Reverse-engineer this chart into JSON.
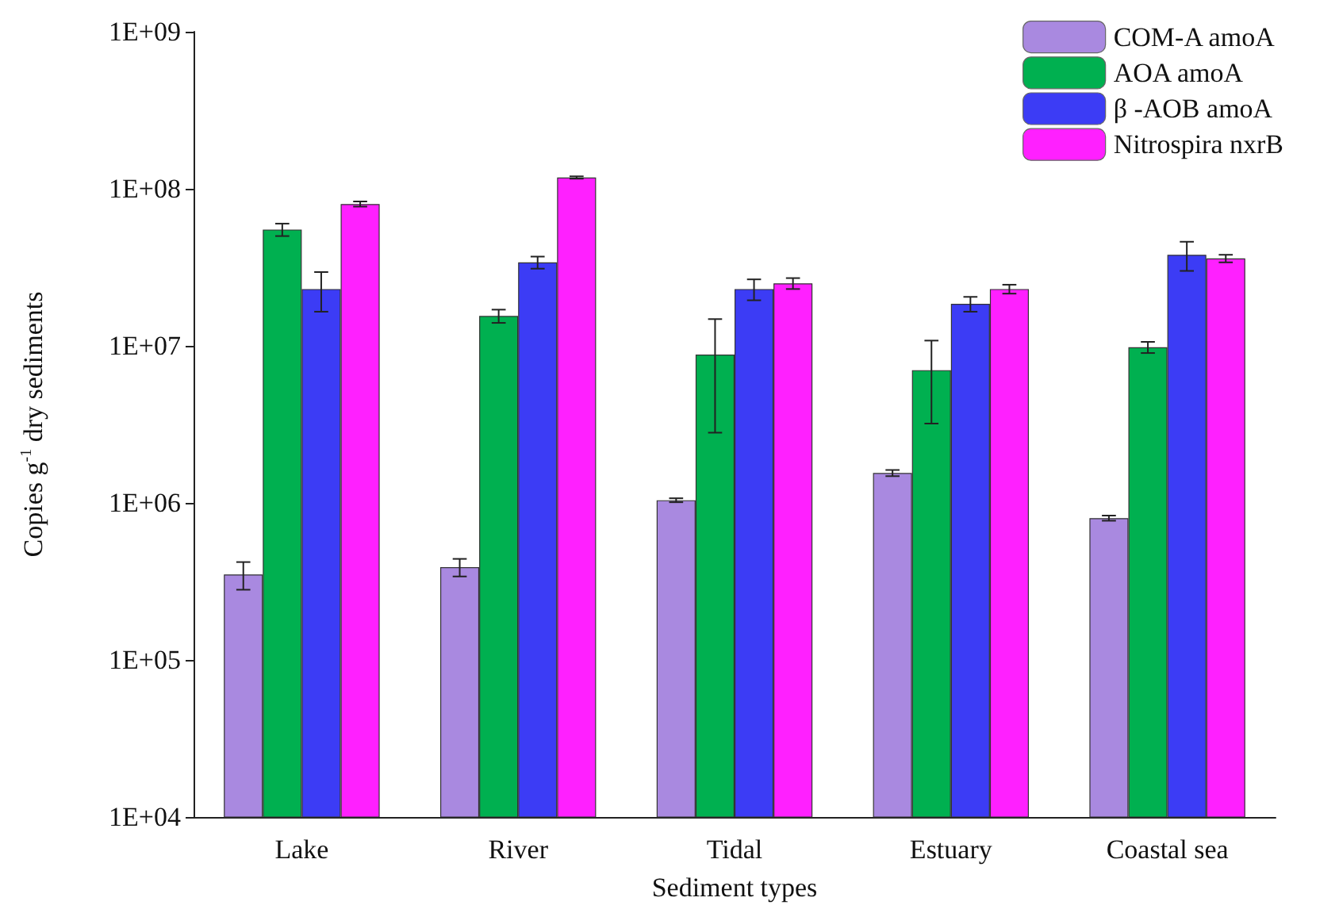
{
  "chart_data": {
    "type": "bar",
    "xlabel": "Sediment types",
    "ylabel": "Copies g$^{-1}$ dry sediments",
    "categories": [
      "Lake",
      "River",
      "Tidal",
      "Estuary",
      "Coastal sea"
    ],
    "log": true,
    "ylim": [
      10000,
      1000000000
    ],
    "yticks": [
      {
        "value": 10000,
        "label": "1E+04"
      },
      {
        "value": 100000,
        "label": "1E+05"
      },
      {
        "value": 1000000,
        "label": "1E+06"
      },
      {
        "value": 10000000,
        "label": "1E+07"
      },
      {
        "value": 100000000,
        "label": "1E+08"
      },
      {
        "value": 1000000000,
        "label": "1E+09"
      }
    ],
    "grid": false,
    "legend": "top right",
    "series": [
      {
        "name": "COM-A amoA",
        "color": "#a989e0",
        "values": [
          350000,
          390000,
          1040000,
          1550000,
          800000
        ],
        "errors": [
          70000,
          50000,
          30000,
          70000,
          30000
        ]
      },
      {
        "name": "AOA amoA",
        "color": "#00b050",
        "values": [
          55000000,
          15500000,
          8800000,
          7000000,
          9800000
        ],
        "errors": [
          5000000,
          1500000,
          6000000,
          3800000,
          800000
        ]
      },
      {
        "name": "β -AOB amoA",
        "color": "#3c3cf5",
        "values": [
          23000000,
          34000000,
          23000000,
          18500000,
          38000000
        ],
        "errors": [
          6500000,
          3000000,
          3500000,
          2000000,
          8000000
        ]
      },
      {
        "name": "Nitrospira nxrB",
        "color": "#ff20ff",
        "values": [
          80000000,
          118000000,
          25000000,
          23000000,
          36000000
        ],
        "errors": [
          3000000,
          2000000,
          2000000,
          1500000,
          2000000
        ]
      }
    ]
  }
}
